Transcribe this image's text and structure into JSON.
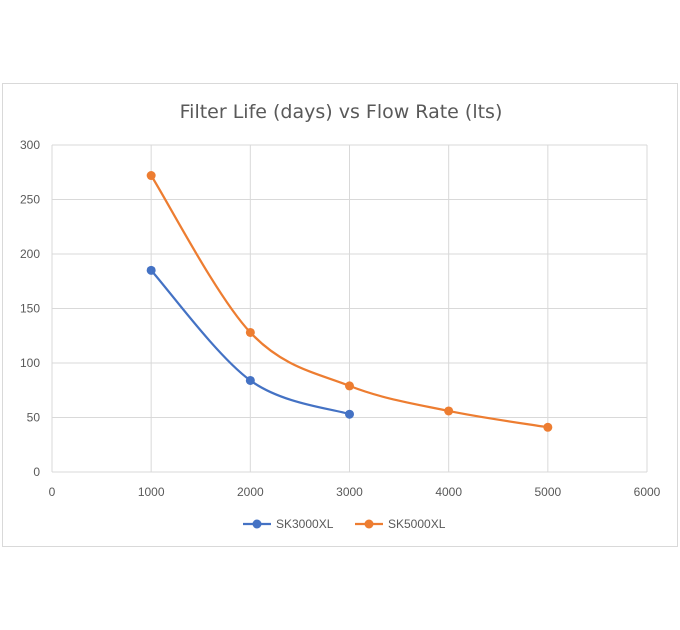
{
  "chart_data": {
    "type": "scatter",
    "title": "Filter Life (days) vs Flow Rate (lts)",
    "xlabel": "",
    "ylabel": "",
    "xlim": [
      0,
      6000
    ],
    "ylim": [
      0,
      300
    ],
    "x_ticks": [
      0,
      1000,
      2000,
      3000,
      4000,
      5000,
      6000
    ],
    "y_ticks": [
      0,
      50,
      100,
      150,
      200,
      250,
      300
    ],
    "grid": true,
    "smooth_lines": true,
    "legend_position": "bottom",
    "series": [
      {
        "name": "SK3000XL",
        "color": "#4472c4",
        "x": [
          1000,
          2000,
          3000
        ],
        "y": [
          185,
          84,
          53
        ]
      },
      {
        "name": "SK5000XL",
        "color": "#ed7d31",
        "x": [
          1000,
          2000,
          3000,
          4000,
          5000
        ],
        "y": [
          272,
          128,
          79,
          56,
          41
        ]
      }
    ]
  }
}
